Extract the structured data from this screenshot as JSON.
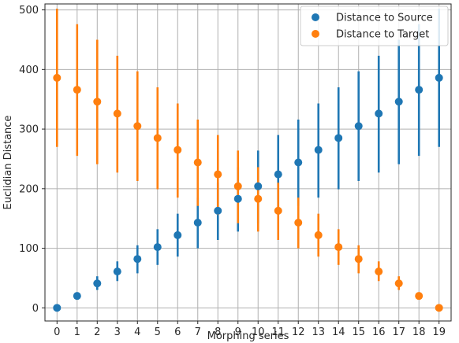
{
  "chart_data": {
    "type": "scatter",
    "xlabel": "Morphing series",
    "ylabel": "Euclidian Distance",
    "xlim": [
      -0.6,
      19.6
    ],
    "ylim": [
      -22,
      510
    ],
    "x_ticks": [
      0,
      1,
      2,
      3,
      4,
      5,
      6,
      7,
      8,
      9,
      10,
      11,
      12,
      13,
      14,
      15,
      16,
      17,
      18,
      19
    ],
    "y_ticks": [
      0,
      100,
      200,
      300,
      400,
      500
    ],
    "grid": true,
    "legend_position": "top-right",
    "series": [
      {
        "name": "Distance to Source",
        "color": "#1f77b4",
        "x": [
          0,
          1,
          2,
          3,
          4,
          5,
          6,
          7,
          8,
          9,
          10,
          11,
          12,
          13,
          14,
          15,
          16,
          17,
          18,
          19
        ],
        "y": [
          0,
          20,
          41,
          61,
          82,
          102,
          122,
          143,
          163,
          183,
          204,
          224,
          244,
          265,
          285,
          305,
          326,
          346,
          366,
          386
        ],
        "err_low": [
          0,
          18,
          30,
          45,
          58,
          72,
          86,
          100,
          114,
          128,
          142,
          156,
          171,
          185,
          199,
          213,
          227,
          241,
          255,
          270
        ],
        "err_high": [
          0,
          24,
          53,
          78,
          105,
          132,
          158,
          185,
          210,
          236,
          264,
          290,
          316,
          343,
          370,
          397,
          423,
          450,
          476,
          502
        ]
      },
      {
        "name": "Distance to Target",
        "color": "#ff7f0e",
        "x": [
          0,
          1,
          2,
          3,
          4,
          5,
          6,
          7,
          8,
          9,
          10,
          11,
          12,
          13,
          14,
          15,
          16,
          17,
          18,
          19
        ],
        "y": [
          386,
          366,
          346,
          326,
          305,
          285,
          265,
          244,
          224,
          204,
          183,
          163,
          143,
          122,
          102,
          82,
          61,
          41,
          20,
          0
        ],
        "err_low": [
          270,
          255,
          241,
          227,
          213,
          199,
          185,
          171,
          156,
          142,
          128,
          114,
          100,
          86,
          72,
          58,
          45,
          30,
          18,
          0
        ],
        "err_high": [
          502,
          476,
          450,
          423,
          397,
          370,
          343,
          316,
          290,
          264,
          236,
          210,
          185,
          158,
          132,
          105,
          78,
          53,
          24,
          0
        ]
      }
    ]
  }
}
